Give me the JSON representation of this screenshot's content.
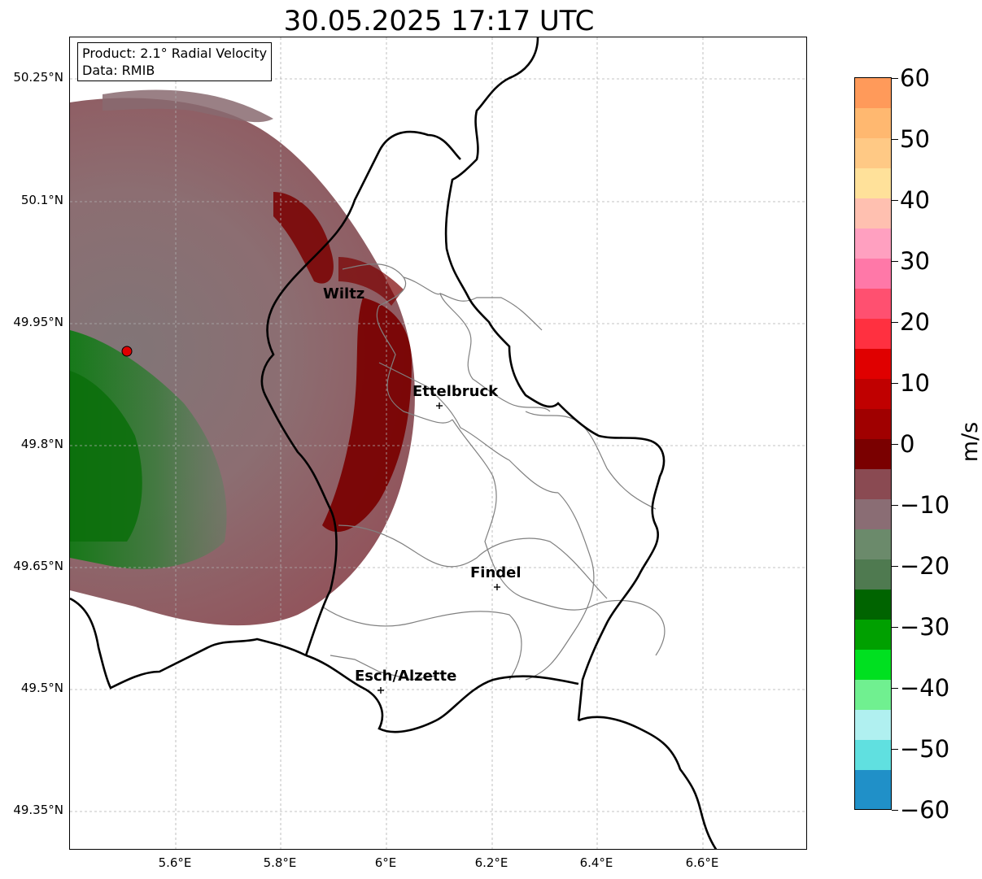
{
  "title": "30.05.2025 17:17 UTC",
  "info": {
    "product": "Product: 2.1° Radial Velocity",
    "data": "Data: RMIB"
  },
  "lat_labels": [
    "50.25°N",
    "50.1°N",
    "49.95°N",
    "49.8°N",
    "49.65°N",
    "49.5°N",
    "49.35°N"
  ],
  "lon_labels": [
    "5.6°E",
    "5.8°E",
    "6°E",
    "6.2°E",
    "6.4°E",
    "6.6°E"
  ],
  "cities": [
    {
      "name": "Wiltz",
      "lon": 5.94,
      "lat": 49.97
    },
    {
      "name": "Ettelbruck",
      "lon": 6.1,
      "lat": 49.85
    },
    {
      "name": "Findel",
      "lon": 6.21,
      "lat": 49.63
    },
    {
      "name": "Esch/Alzette",
      "lon": 5.99,
      "lat": 49.5
    }
  ],
  "radar_site": {
    "lon": 5.505,
    "lat": 49.915
  },
  "colorbar": {
    "label": "m/s",
    "min": -60,
    "max": 60,
    "ticks": [
      "60",
      "50",
      "40",
      "30",
      "20",
      "10",
      "0",
      "−10",
      "−20",
      "−30",
      "−40",
      "−50",
      "−60"
    ]
  },
  "colors": {
    "outbound_strong": "#7a0000",
    "outbound_weak": "#8a4d55",
    "near_zero": "#8a6d70",
    "inbound_weak": "#5c7f5c",
    "inbound_strong": "#007000",
    "radar_marker": "#e00000"
  }
}
